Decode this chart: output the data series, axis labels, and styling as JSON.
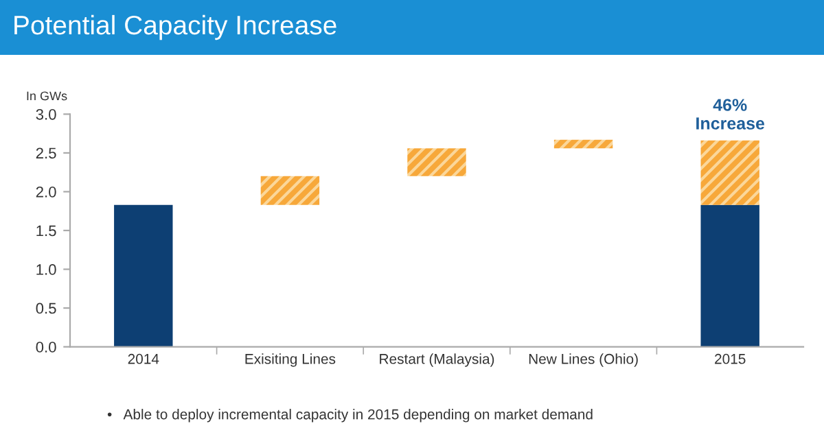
{
  "chart_data": {
    "type": "bar",
    "title": "Potential Capacity Increase",
    "ylabel": "In GWs",
    "categories": [
      "2014",
      "Exisiting Lines",
      "Restart (Malaysia)",
      "New Lines (Ohio)",
      "2015"
    ],
    "series": [
      {
        "color": "#0d3f73",
        "values": [
          1.83,
          null,
          null,
          null,
          1.83
        ]
      },
      {
        "color": "#f7a83a",
        "values": [
          null,
          0.37,
          0.36,
          0.11,
          0.83
        ],
        "base": [
          null,
          1.83,
          2.2,
          2.56,
          1.83
        ]
      }
    ],
    "ylim": [
      0,
      3
    ],
    "yticks": [
      {
        "value": 0,
        "label": "0.0"
      },
      {
        "value": 0.5,
        "label": "0.5"
      },
      {
        "value": 1,
        "label": "1.0"
      },
      {
        "value": 1.5,
        "label": "1.5"
      },
      {
        "value": 2,
        "label": "2.0"
      },
      {
        "value": 2.5,
        "label": "2.5"
      },
      {
        "value": 3,
        "label": "3.0"
      }
    ],
    "grid": false,
    "legend": false,
    "annotations": [
      {
        "text": "46%\nIncrease",
        "x": "2015",
        "y": 2.66
      },
      "•   Able to deploy incremental capacity in 2015 depending on market demand"
    ]
  }
}
